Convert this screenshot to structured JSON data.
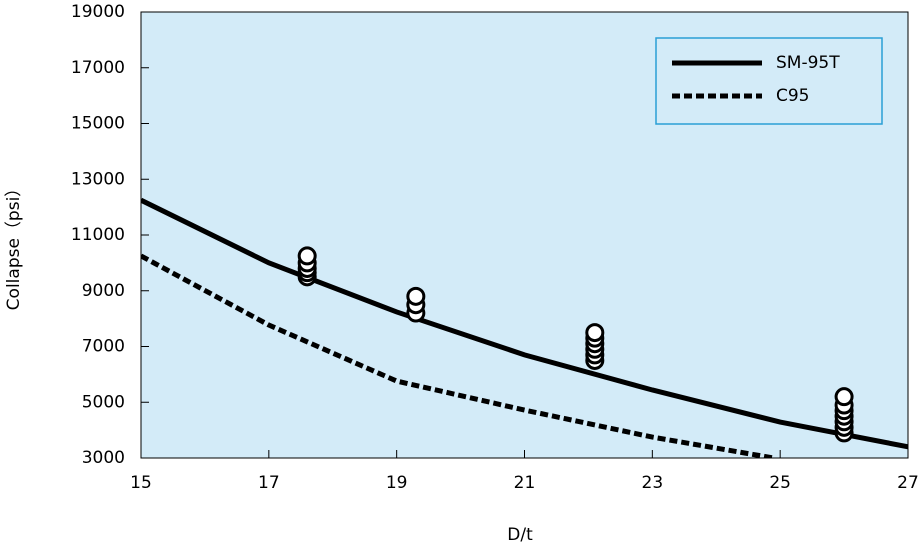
{
  "chart_data": {
    "type": "line",
    "x_label": "D/t",
    "y_label": "Collapse（psi）",
    "xlim": [
      15,
      27
    ],
    "xticks": [
      15,
      17,
      19,
      21,
      23,
      25,
      27
    ],
    "ylim": [
      3000,
      19000
    ],
    "yticks": [
      3000,
      5000,
      7000,
      9000,
      11000,
      13000,
      15000,
      17000,
      19000
    ],
    "legend": "upper right",
    "background": "#d3ebf8",
    "frame_color": "#2a9fd6",
    "series": [
      {
        "name": "SM-95T",
        "color": "#000000",
        "style": "solid",
        "x": [
          15,
          17,
          19,
          21,
          23,
          25,
          27
        ],
        "values": [
          12250,
          10000,
          8240,
          6700,
          5440,
          4290,
          3400
        ]
      },
      {
        "name": "C95",
        "color": "#000000",
        "style": "dashed",
        "x": [
          15,
          17,
          19,
          21,
          23,
          24.9
        ],
        "values": [
          10250,
          7770,
          5760,
          4720,
          3750,
          3000
        ]
      },
      {
        "type": "scatter",
        "color": "#000000",
        "x": [
          17.6,
          17.6,
          17.6,
          17.6,
          17.6,
          19.3,
          19.3,
          19.3,
          22.1,
          22.1,
          22.1,
          22.1,
          22.1,
          22.1,
          26,
          26,
          26,
          26,
          26,
          26,
          26
        ],
        "values": [
          9500,
          9650,
          9800,
          10000,
          10250,
          8200,
          8500,
          8800,
          6500,
          6700,
          6900,
          7100,
          7300,
          7500,
          3900,
          4100,
          4300,
          4500,
          4700,
          4900,
          5200
        ]
      }
    ]
  }
}
